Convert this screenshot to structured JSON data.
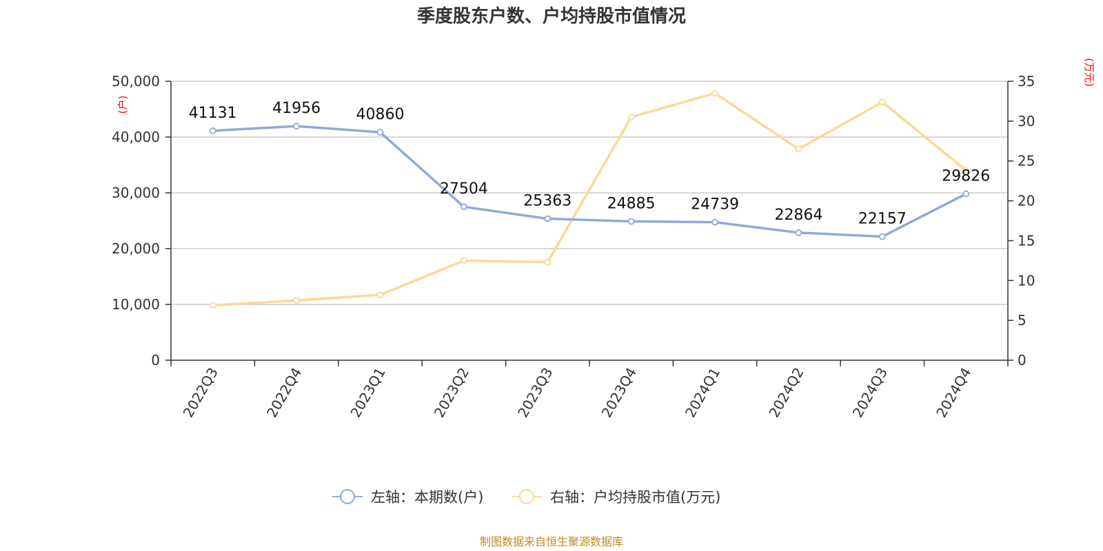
{
  "chart_data": {
    "type": "line",
    "title": "季度股东户数、户均持股市值情况",
    "categories": [
      "2022Q3",
      "2022Q4",
      "2023Q1",
      "2023Q2",
      "2023Q3",
      "2023Q4",
      "2024Q1",
      "2024Q2",
      "2024Q3",
      "2024Q4"
    ],
    "left_axis": {
      "unit": "(户)",
      "ylim": [
        0,
        50000
      ],
      "ticks": [
        "0",
        "10,000",
        "20,000",
        "30,000",
        "40,000",
        "50,000"
      ]
    },
    "right_axis": {
      "unit": "(万元)",
      "ylim": [
        0,
        35
      ],
      "ticks": [
        "0",
        "5",
        "10",
        "15",
        "20",
        "25",
        "30",
        "35"
      ]
    },
    "series": [
      {
        "name": "左轴：本期数(户)",
        "axis": "left",
        "color": "#8eaad8",
        "values": [
          41131,
          41956,
          40860,
          27504,
          25363,
          24885,
          24739,
          22864,
          22157,
          29826
        ],
        "labels": [
          "41131",
          "41956",
          "40860",
          "27504",
          "25363",
          "24885",
          "24739",
          "22864",
          "22157",
          "29826"
        ]
      },
      {
        "name": "右轴：户均持股市值(万元)",
        "axis": "right",
        "color": "#fcd994",
        "values": [
          6.9,
          7.5,
          8.2,
          12.5,
          12.3,
          30.5,
          33.5,
          26.5,
          32.4,
          23.8
        ]
      }
    ],
    "grid": true,
    "legend_position": "bottom"
  },
  "footer": {
    "source": "制图数据来自恒生聚源数据库"
  }
}
